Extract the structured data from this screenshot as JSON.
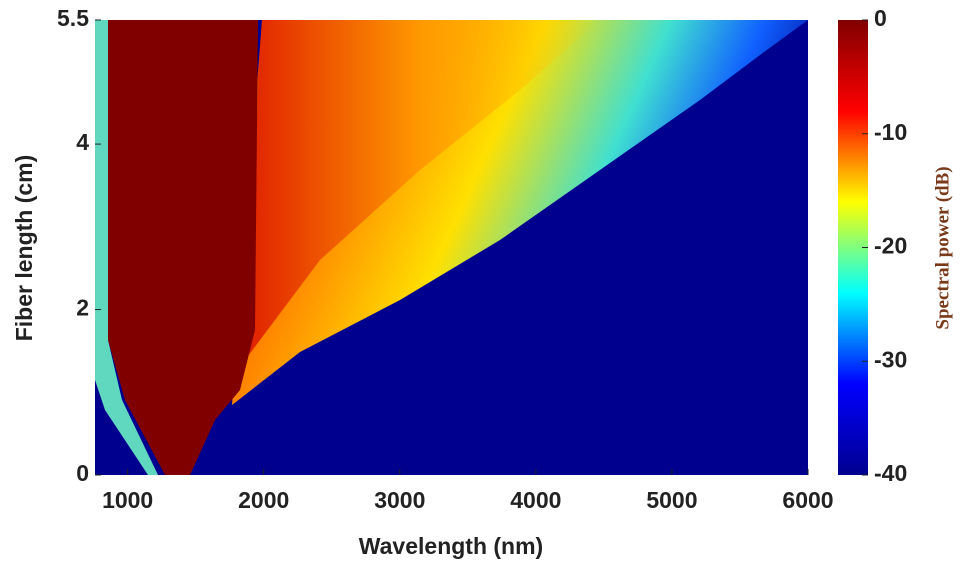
{
  "chart_data": {
    "type": "heatmap",
    "xlabel": "Wavelength (nm)",
    "ylabel": "Fiber length (cm)",
    "xlim": [
      760,
      6000
    ],
    "xticks": [
      1000,
      2000,
      3000,
      4000,
      5000,
      6000
    ],
    "ylim": [
      0,
      5.5
    ],
    "yticks": [
      0,
      2,
      4,
      5.5
    ],
    "colorbar": {
      "label": "Spectral power (dB)",
      "lim": [
        -40,
        0
      ],
      "ticks": [
        0,
        -10,
        -20,
        -30,
        -40
      ],
      "colormap": "jet"
    }
  }
}
